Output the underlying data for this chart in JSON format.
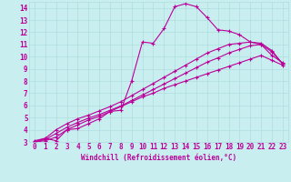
{
  "xlabel": "Windchill (Refroidissement éolien,°C)",
  "bg_color": "#c8eef0",
  "grid_color": "#b0dde0",
  "line_color": "#bb0099",
  "xlim": [
    -0.5,
    23.5
  ],
  "ylim": [
    3,
    14.5
  ],
  "xticks": [
    0,
    1,
    2,
    3,
    4,
    5,
    6,
    7,
    8,
    9,
    10,
    11,
    12,
    13,
    14,
    15,
    16,
    17,
    18,
    19,
    20,
    21,
    22,
    23
  ],
  "yticks": [
    3,
    4,
    5,
    6,
    7,
    8,
    9,
    10,
    11,
    12,
    13,
    14
  ],
  "series": [
    [
      3.1,
      3.3,
      3.1,
      4.0,
      4.1,
      4.5,
      4.9,
      5.5,
      5.6,
      8.0,
      11.2,
      11.1,
      12.3,
      14.1,
      14.35,
      14.1,
      13.2,
      12.2,
      12.1,
      11.8,
      11.2,
      11.0,
      10.1,
      9.5
    ],
    [
      3.0,
      3.1,
      3.4,
      4.0,
      4.4,
      4.8,
      5.1,
      5.5,
      5.9,
      6.3,
      6.7,
      7.0,
      7.4,
      7.7,
      8.0,
      8.3,
      8.6,
      8.9,
      9.2,
      9.5,
      9.8,
      10.1,
      9.7,
      9.3
    ],
    [
      3.0,
      3.2,
      3.7,
      4.2,
      4.6,
      4.95,
      5.25,
      5.6,
      5.95,
      6.4,
      6.85,
      7.3,
      7.75,
      8.2,
      8.65,
      9.1,
      9.55,
      9.9,
      10.3,
      10.6,
      10.9,
      11.0,
      10.4,
      9.4
    ],
    [
      3.0,
      3.3,
      4.0,
      4.5,
      4.9,
      5.2,
      5.55,
      5.9,
      6.3,
      6.8,
      7.3,
      7.8,
      8.3,
      8.8,
      9.3,
      9.8,
      10.3,
      10.65,
      11.0,
      11.1,
      11.2,
      11.1,
      10.5,
      9.4
    ]
  ],
  "linewidth": 0.8,
  "markersize": 3.0,
  "tick_fontsize": 5.5,
  "xlabel_fontsize": 5.5
}
